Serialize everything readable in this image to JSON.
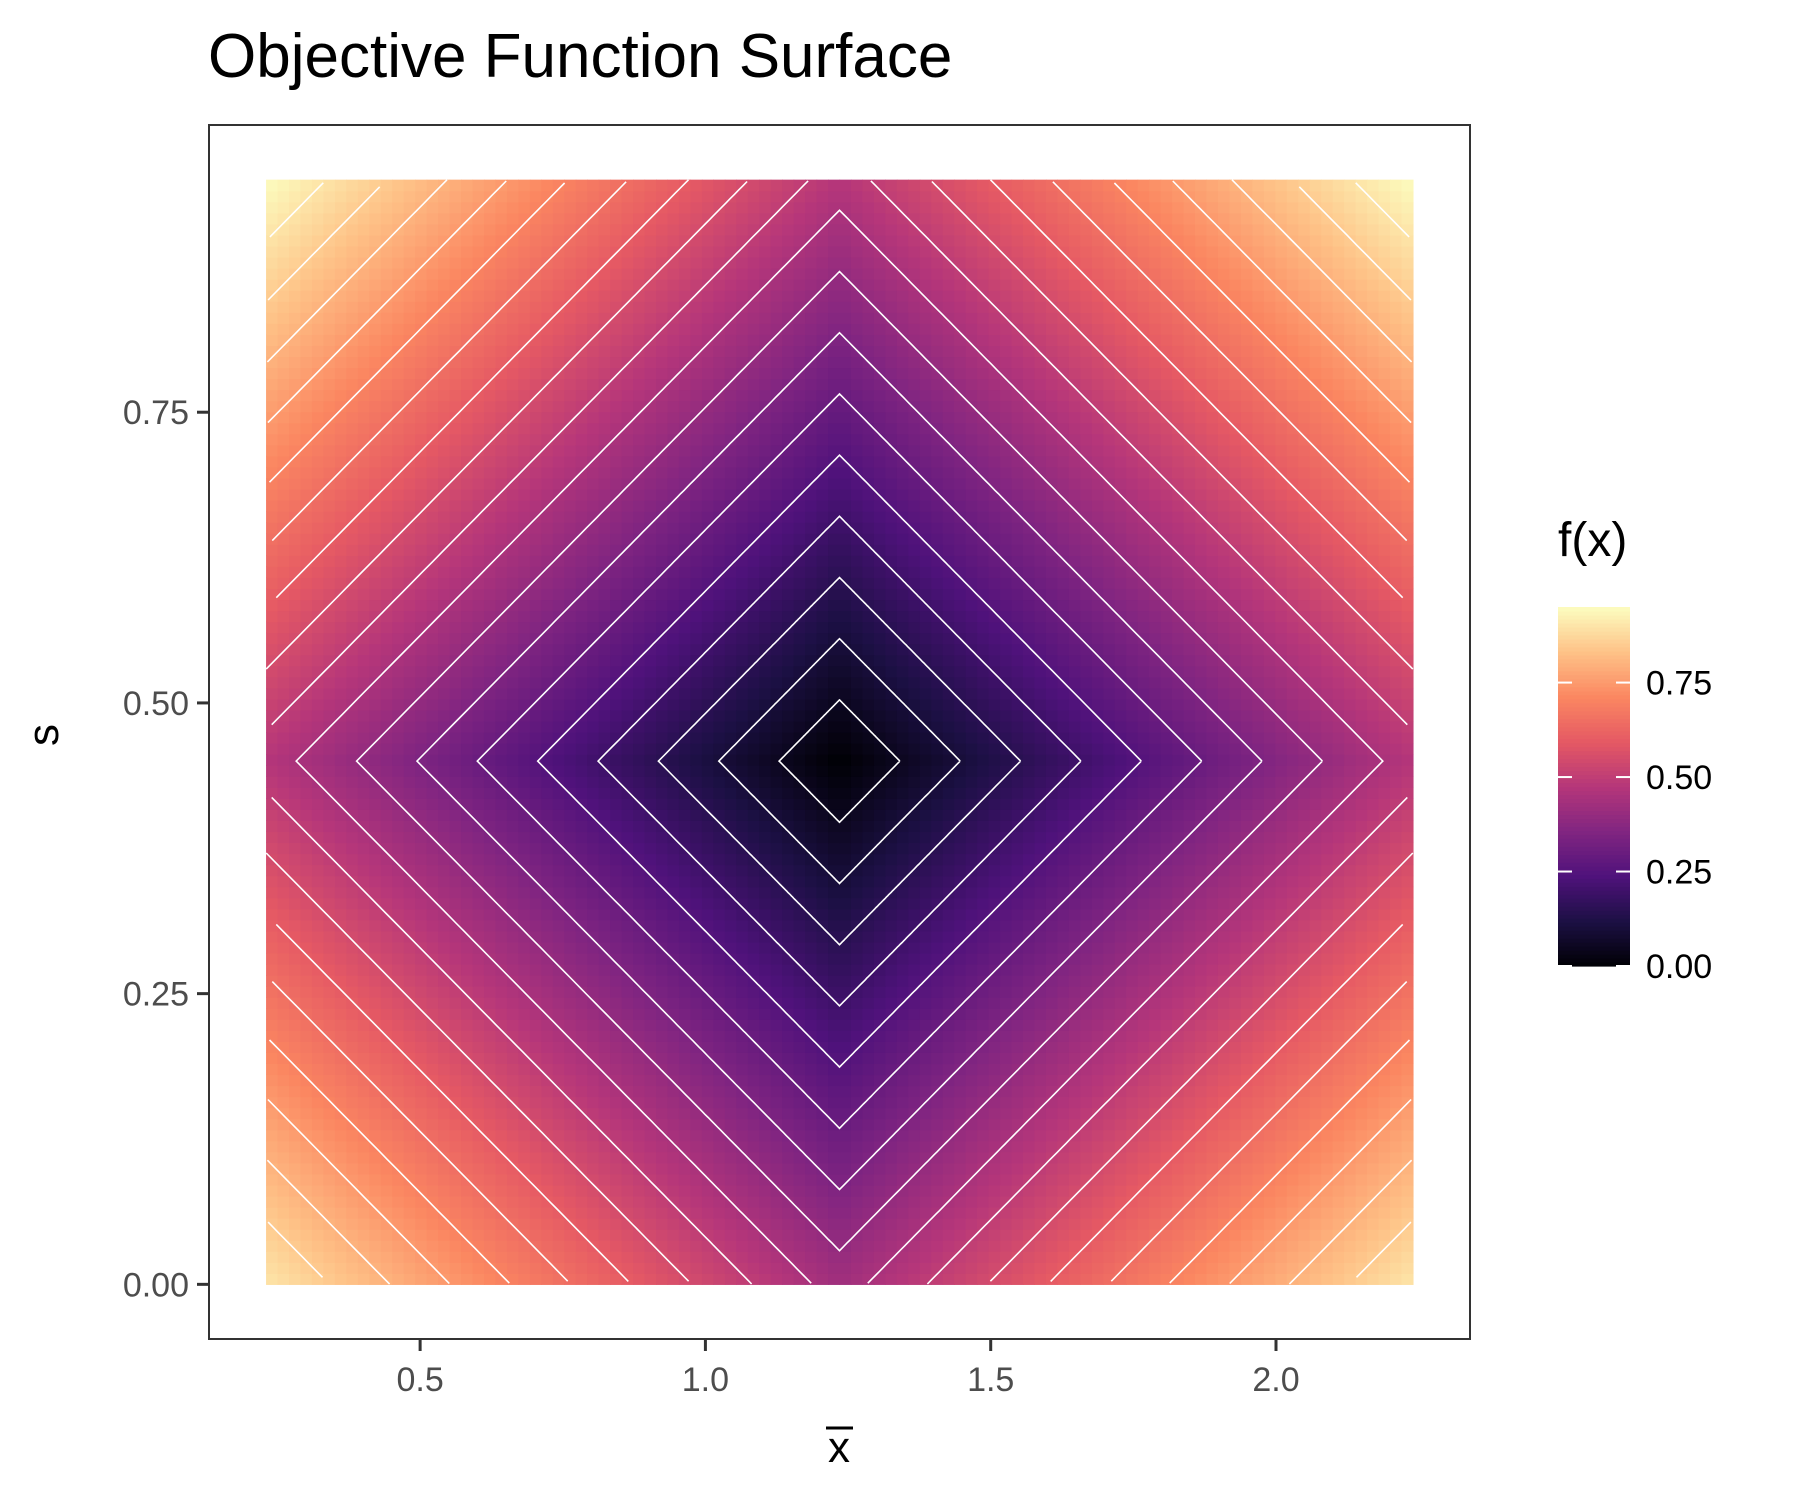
{
  "chart_data": {
    "type": "heatmap",
    "title": "Objective Function Surface",
    "xlabel": "x",
    "xlabel_overline": true,
    "ylabel": "s",
    "x_range": [
      0.23,
      2.24
    ],
    "y_range": [
      0.0,
      0.95
    ],
    "xlim": [
      0.13,
      2.34
    ],
    "ylim": [
      -0.047,
      0.997
    ],
    "x_ticks": [
      0.5,
      1.0,
      1.5,
      2.0
    ],
    "x_tick_labels": [
      "0.5",
      "1.0",
      "1.5",
      "2.0"
    ],
    "y_ticks": [
      0.0,
      0.25,
      0.5,
      0.75
    ],
    "y_tick_labels": [
      "0.00",
      "0.25",
      "0.50",
      "0.75"
    ],
    "minimum": {
      "x": 1.235,
      "s": 0.45,
      "value": 0.0
    },
    "surface": "f = |x - 1.235| / 2.01 + |s - 0.45| / 0.95, scaled to max 0.95",
    "value_range": [
      0.0,
      0.95
    ],
    "contour_levels": [
      0.05,
      0.1,
      0.15,
      0.2,
      0.25,
      0.3,
      0.35,
      0.4,
      0.45,
      0.5,
      0.55,
      0.6,
      0.65,
      0.7,
      0.75,
      0.8,
      0.85,
      0.9
    ],
    "contour_color": "#ffffff",
    "colormap": "magma",
    "colormap_stops": [
      "#000004",
      "#1c1044",
      "#4f127b",
      "#812581",
      "#b5367a",
      "#e55964",
      "#fb8761",
      "#fec287",
      "#fcfdbf"
    ],
    "grid": false,
    "legend": {
      "title": "f(x)",
      "position": "right",
      "ticks": [
        0.0,
        0.25,
        0.5,
        0.75
      ],
      "tick_labels": [
        "0.00",
        "0.25",
        "0.50",
        "0.75"
      ]
    }
  }
}
